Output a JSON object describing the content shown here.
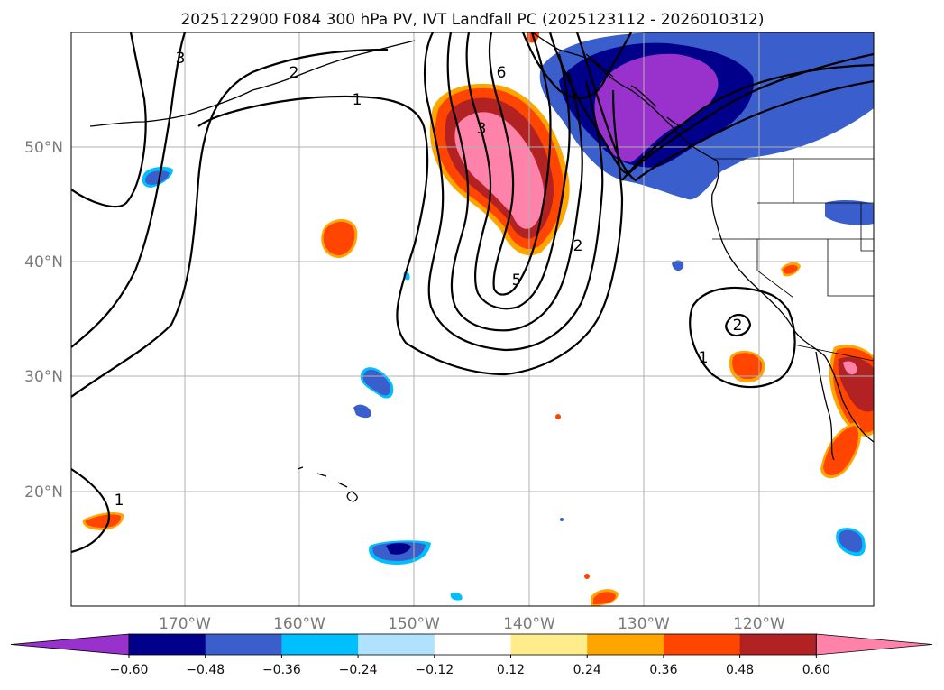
{
  "title": "2025122900 F084 300 hPa PV, IVT Landfall PC (2025123112 - 2026010312)",
  "map": {
    "lat_labels": [
      "50°N",
      "40°N",
      "30°N",
      "20°N"
    ],
    "lon_labels": [
      "170°W",
      "160°W",
      "150°W",
      "140°W",
      "130°W",
      "120°W"
    ],
    "contour_labels": [
      "3",
      "2",
      "1",
      "6",
      "3",
      "5",
      "2",
      "2",
      "1",
      "1"
    ]
  },
  "colorbar": {
    "tick_labels": [
      "−0.60",
      "−0.48",
      "−0.36",
      "−0.24",
      "−0.12",
      "0.12",
      "0.24",
      "0.36",
      "0.48",
      "0.60"
    ],
    "colors": [
      "#9932cc",
      "#00008b",
      "#3a5fcd",
      "#00bfff",
      "#b0e2ff",
      "#ffffff",
      "#ffec8b",
      "#ffa500",
      "#ff4500",
      "#b22222",
      "#ff82ab"
    ]
  }
}
